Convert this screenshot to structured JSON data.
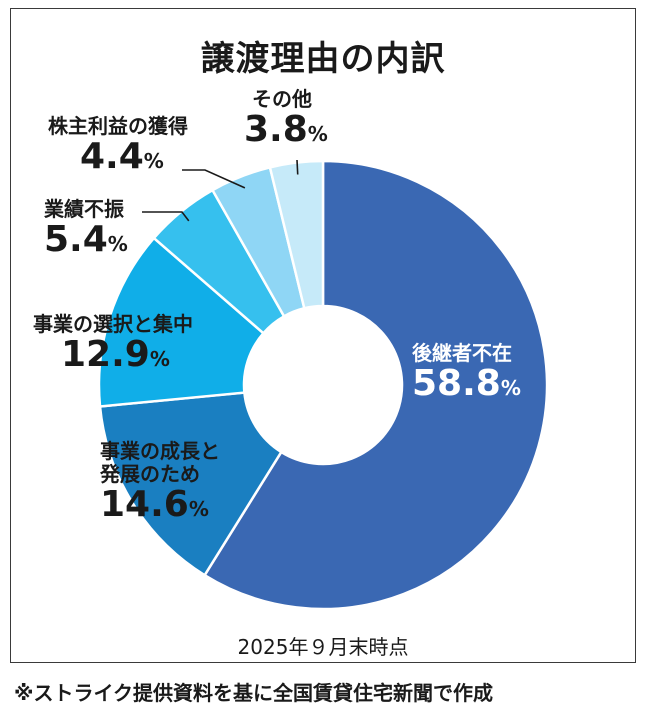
{
  "title": "譲渡理由の内訳",
  "note": "2025年９月末時点",
  "source": "※ストライク提供資料を基に全国賃貸住宅新聞で作成",
  "percent_sign": "%",
  "colors": {
    "slices": [
      "#3a68b3",
      "#1a7fc1",
      "#10aee8",
      "#36c0ee",
      "#8fd6f5",
      "#c6eaf9"
    ],
    "separator": "#ffffff",
    "leader": "#1a1a1a"
  },
  "chart_data": {
    "type": "pie",
    "variant": "donut",
    "title": "譲渡理由の内訳",
    "slices": [
      {
        "label": "後継者不在",
        "value": 58.8
      },
      {
        "label": "事業の成長と発展のため",
        "value": 14.6
      },
      {
        "label": "事業の選択と集中",
        "value": 12.9
      },
      {
        "label": "業績不振",
        "value": 5.4
      },
      {
        "label": "株主利益の獲得",
        "value": 4.4
      },
      {
        "label": "その他",
        "value": 3.8
      }
    ],
    "value_text": [
      "58.8",
      "14.6",
      "12.9",
      "5.4",
      "4.4",
      "3.8"
    ],
    "label_lines": [
      [
        "後継者不在"
      ],
      [
        "事業の成長と",
        "発展のため"
      ],
      [
        "事業の選択と集中"
      ],
      [
        "業績不振"
      ],
      [
        "株主利益の獲得"
      ],
      [
        "その他"
      ]
    ],
    "unit": "%",
    "start": "12 o'clock",
    "direction": "clockwise"
  }
}
